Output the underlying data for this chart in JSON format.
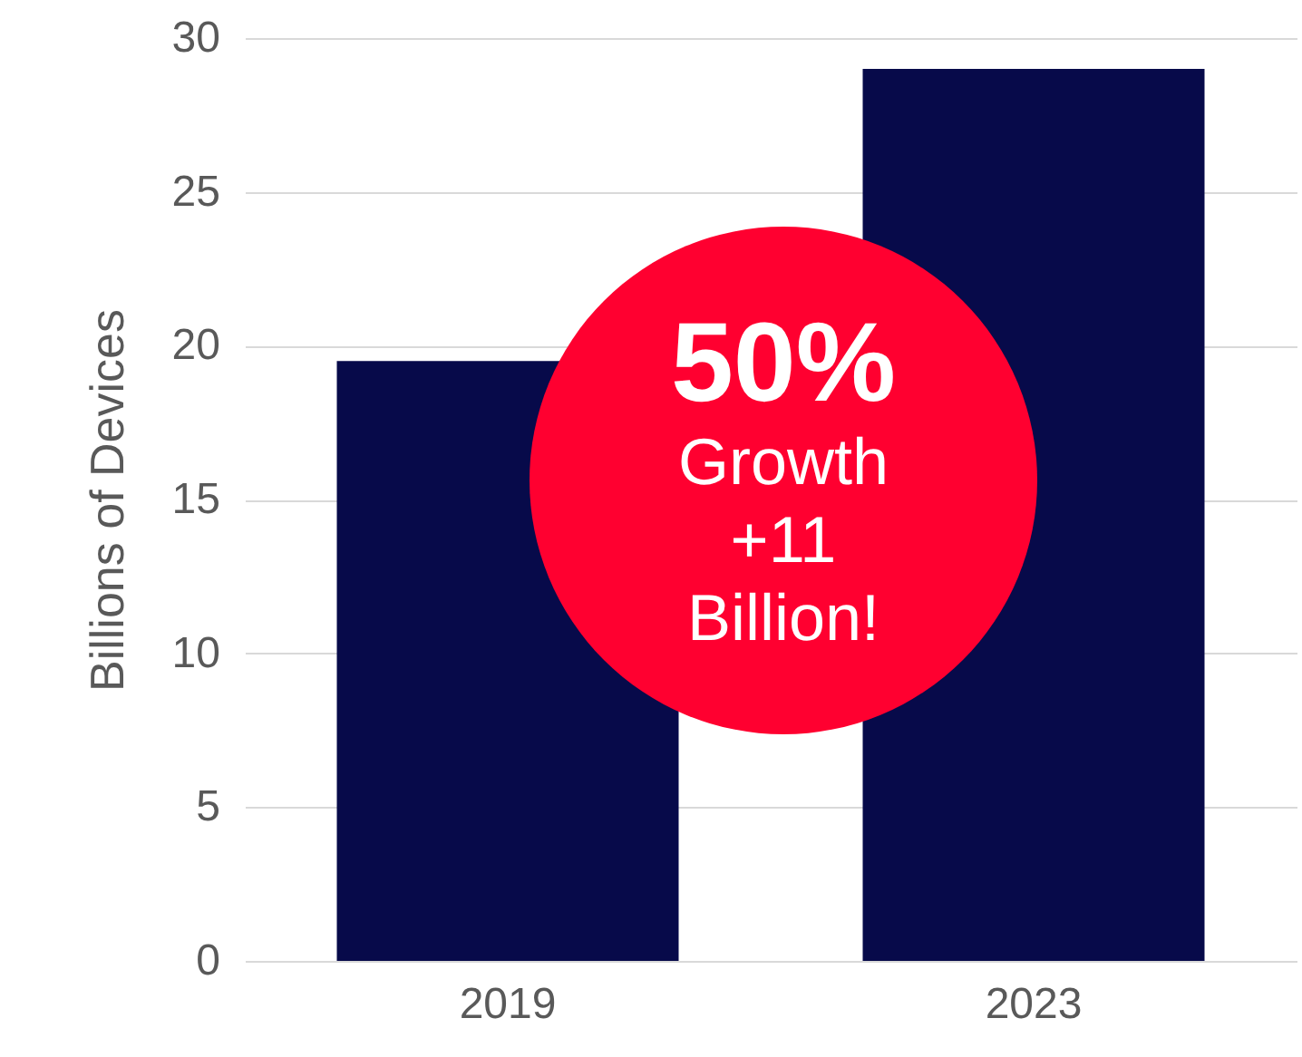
{
  "chart_data": {
    "type": "bar",
    "ylabel": "Billions of Devices",
    "categories": [
      "2019",
      "2023"
    ],
    "values": [
      19.5,
      29
    ],
    "color": "#070a4a",
    "ylim": [
      0,
      30
    ],
    "yticks": [
      0,
      5,
      10,
      15,
      20,
      25,
      30
    ],
    "grid": "y",
    "annotations": [
      "50%",
      "Growth",
      "+11",
      "Billion!"
    ]
  }
}
